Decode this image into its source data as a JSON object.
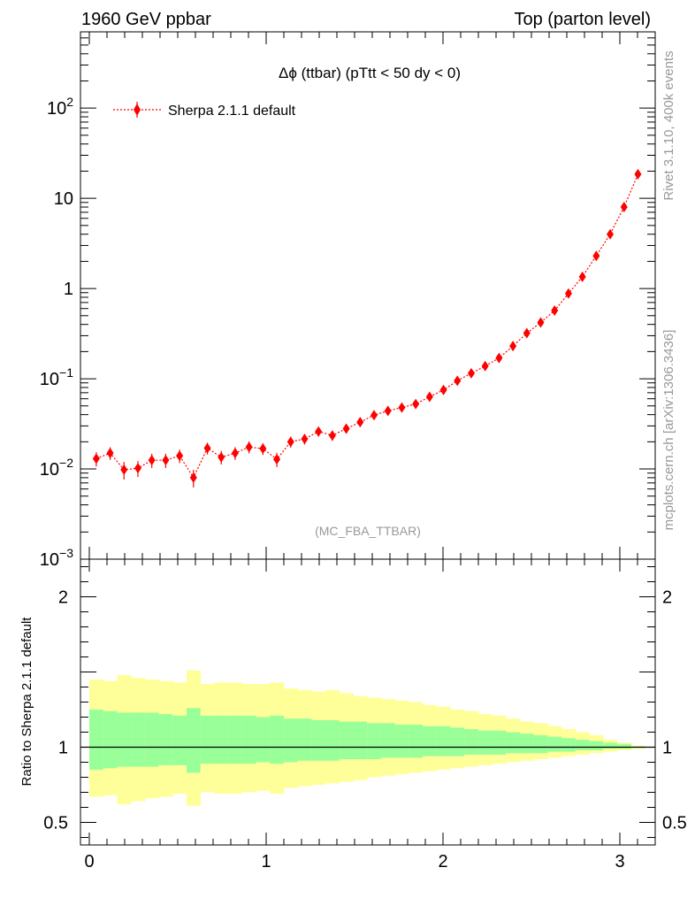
{
  "header": {
    "left": "1960 GeV ppbar",
    "right": "Top (parton level)"
  },
  "side_labels": {
    "rivet": "Rivet 3.1.10,  400k events",
    "mcplots": "mcplots.cern.ch [arXiv:1306.3436]"
  },
  "colors": {
    "mc": "#ff0000",
    "band_outer": "#ffff99",
    "band_inner": "#99ff99"
  },
  "chart_data": [
    {
      "type": "line",
      "title": "Δϕ (ttbar) (pTtt < 50 dy < 0)",
      "annotation": "(MC_FBA_TTBAR)",
      "xlabel": "",
      "ylabel": "",
      "xlim": [
        -0.05,
        3.2
      ],
      "ylim": [
        0.001,
        700
      ],
      "yscale": "log",
      "legend_placement": "top-left",
      "y_tick_labels": [
        {
          "value": 0.001,
          "base": "10",
          "exp": "−3"
        },
        {
          "value": 0.01,
          "base": "10",
          "exp": "−2"
        },
        {
          "value": 0.1,
          "base": "10",
          "exp": "−1"
        },
        {
          "value": 1,
          "base": "1",
          "exp": ""
        },
        {
          "value": 10,
          "base": "10",
          "exp": ""
        },
        {
          "value": 100,
          "base": "10",
          "exp": "2"
        }
      ],
      "series": [
        {
          "name": "Sherpa 2.1.1 default",
          "x": [
            0.0393,
            0.1178,
            0.1963,
            0.2749,
            0.3534,
            0.432,
            0.5105,
            0.589,
            0.6676,
            0.7461,
            0.8247,
            0.9032,
            0.9817,
            1.0603,
            1.1388,
            1.2174,
            1.2959,
            1.3744,
            1.453,
            1.5315,
            1.6101,
            1.6886,
            1.7671,
            1.8457,
            1.9242,
            2.0028,
            2.0813,
            2.1598,
            2.2384,
            2.3169,
            2.3955,
            2.474,
            2.5525,
            2.6311,
            2.7096,
            2.7882,
            2.8667,
            2.9452,
            3.0238,
            3.1023
          ],
          "y": [
            0.013,
            0.015,
            0.0098,
            0.0102,
            0.0125,
            0.0125,
            0.014,
            0.008,
            0.017,
            0.0135,
            0.015,
            0.0175,
            0.0168,
            0.0128,
            0.02,
            0.0215,
            0.026,
            0.0235,
            0.028,
            0.033,
            0.0395,
            0.044,
            0.048,
            0.0525,
            0.063,
            0.075,
            0.095,
            0.115,
            0.138,
            0.17,
            0.23,
            0.32,
            0.42,
            0.57,
            0.88,
            1.35,
            2.3,
            4.0,
            8.0,
            18.5
          ],
          "err": [
            0.18,
            0.16,
            0.22,
            0.2,
            0.18,
            0.18,
            0.17,
            0.22,
            0.15,
            0.17,
            0.16,
            0.15,
            0.15,
            0.18,
            0.14,
            0.13,
            0.12,
            0.13,
            0.12,
            0.11,
            0.1,
            0.1,
            0.09,
            0.09,
            0.08,
            0.08,
            0.07,
            0.07,
            0.06,
            0.06,
            0.05,
            0.05,
            0.04,
            0.04,
            0.03,
            0.03,
            0.02,
            0.02,
            0.015,
            0.01
          ]
        }
      ]
    },
    {
      "type": "area",
      "ylabel": "Ratio to Sherpa 2.1.1 default",
      "xlabel": "",
      "xlim": [
        -0.05,
        3.2
      ],
      "ylim": [
        0.35,
        2.25
      ],
      "x_ticks": [
        0,
        1,
        2,
        3
      ],
      "y_ticks": [
        0.5,
        1,
        2
      ],
      "reference_line": 1,
      "bins_edges": [
        0.0,
        0.0785,
        0.1571,
        0.2356,
        0.3142,
        0.3927,
        0.4712,
        0.5498,
        0.6283,
        0.7069,
        0.7854,
        0.8639,
        0.9425,
        1.021,
        1.0996,
        1.1781,
        1.2566,
        1.3352,
        1.4137,
        1.4923,
        1.5708,
        1.6493,
        1.7279,
        1.8064,
        1.885,
        1.9635,
        2.042,
        2.1206,
        2.1991,
        2.2777,
        2.3562,
        2.4347,
        2.5133,
        2.5918,
        2.6704,
        2.7489,
        2.8274,
        2.906,
        2.9845,
        3.0631,
        3.1416
      ],
      "outer_band": {
        "upper": [
          1.45,
          1.44,
          1.48,
          1.46,
          1.45,
          1.44,
          1.43,
          1.51,
          1.42,
          1.43,
          1.43,
          1.42,
          1.42,
          1.43,
          1.39,
          1.38,
          1.37,
          1.38,
          1.36,
          1.34,
          1.33,
          1.32,
          1.31,
          1.3,
          1.28,
          1.27,
          1.25,
          1.24,
          1.22,
          1.21,
          1.19,
          1.17,
          1.16,
          1.14,
          1.12,
          1.1,
          1.08,
          1.05,
          1.03,
          1.01
        ],
        "lower": [
          0.67,
          0.68,
          0.62,
          0.64,
          0.66,
          0.67,
          0.69,
          0.61,
          0.7,
          0.69,
          0.69,
          0.7,
          0.71,
          0.69,
          0.73,
          0.74,
          0.75,
          0.76,
          0.77,
          0.78,
          0.8,
          0.81,
          0.82,
          0.83,
          0.84,
          0.85,
          0.86,
          0.87,
          0.88,
          0.89,
          0.9,
          0.91,
          0.92,
          0.93,
          0.94,
          0.95,
          0.96,
          0.97,
          0.98,
          0.99
        ]
      },
      "inner_band": {
        "upper": [
          1.25,
          1.24,
          1.23,
          1.23,
          1.23,
          1.22,
          1.21,
          1.26,
          1.21,
          1.21,
          1.21,
          1.21,
          1.2,
          1.21,
          1.19,
          1.19,
          1.18,
          1.18,
          1.17,
          1.17,
          1.16,
          1.16,
          1.15,
          1.15,
          1.14,
          1.14,
          1.13,
          1.12,
          1.11,
          1.11,
          1.1,
          1.09,
          1.08,
          1.07,
          1.06,
          1.05,
          1.04,
          1.03,
          1.02,
          1.005
        ],
        "lower": [
          0.85,
          0.86,
          0.87,
          0.87,
          0.87,
          0.88,
          0.88,
          0.83,
          0.89,
          0.89,
          0.89,
          0.89,
          0.9,
          0.89,
          0.9,
          0.91,
          0.91,
          0.91,
          0.92,
          0.92,
          0.92,
          0.93,
          0.93,
          0.93,
          0.94,
          0.94,
          0.94,
          0.95,
          0.95,
          0.95,
          0.96,
          0.96,
          0.96,
          0.97,
          0.97,
          0.98,
          0.98,
          0.99,
          0.99,
          0.995
        ]
      }
    }
  ]
}
